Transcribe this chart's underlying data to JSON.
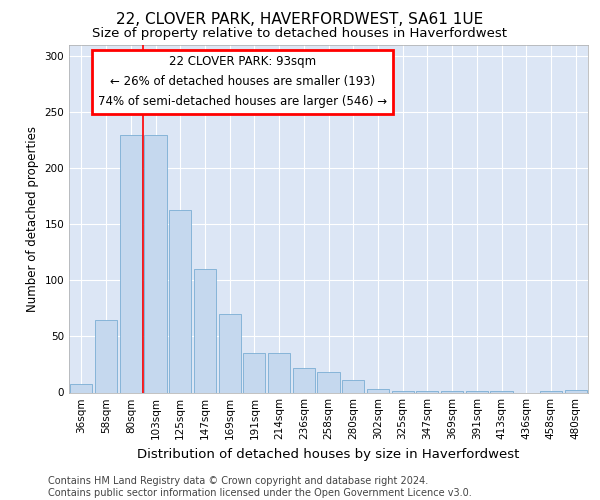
{
  "title1": "22, CLOVER PARK, HAVERFORDWEST, SA61 1UE",
  "title2": "Size of property relative to detached houses in Haverfordwest",
  "xlabel": "Distribution of detached houses by size in Haverfordwest",
  "ylabel": "Number of detached properties",
  "categories": [
    "36sqm",
    "58sqm",
    "80sqm",
    "103sqm",
    "125sqm",
    "147sqm",
    "169sqm",
    "191sqm",
    "214sqm",
    "236sqm",
    "258sqm",
    "280sqm",
    "302sqm",
    "325sqm",
    "347sqm",
    "369sqm",
    "391sqm",
    "413sqm",
    "436sqm",
    "458sqm",
    "480sqm"
  ],
  "values": [
    8,
    65,
    230,
    230,
    163,
    110,
    70,
    35,
    35,
    22,
    18,
    11,
    3,
    1,
    1,
    1,
    1,
    1,
    0,
    1,
    2
  ],
  "bar_color": "#c5d8ee",
  "bar_edge_color": "#7aadd4",
  "background_color": "#dce6f5",
  "grid_color": "#ffffff",
  "annotation_box_text": "22 CLOVER PARK: 93sqm\n← 26% of detached houses are smaller (193)\n74% of semi-detached houses are larger (546) →",
  "red_line_x": 2.5,
  "ylim": [
    0,
    310
  ],
  "yticks": [
    0,
    50,
    100,
    150,
    200,
    250,
    300
  ],
  "footer_text": "Contains HM Land Registry data © Crown copyright and database right 2024.\nContains public sector information licensed under the Open Government Licence v3.0.",
  "title1_fontsize": 11,
  "title2_fontsize": 9.5,
  "xlabel_fontsize": 9.5,
  "ylabel_fontsize": 8.5,
  "tick_fontsize": 7.5,
  "footer_fontsize": 7,
  "ann_fontsize": 8.5
}
